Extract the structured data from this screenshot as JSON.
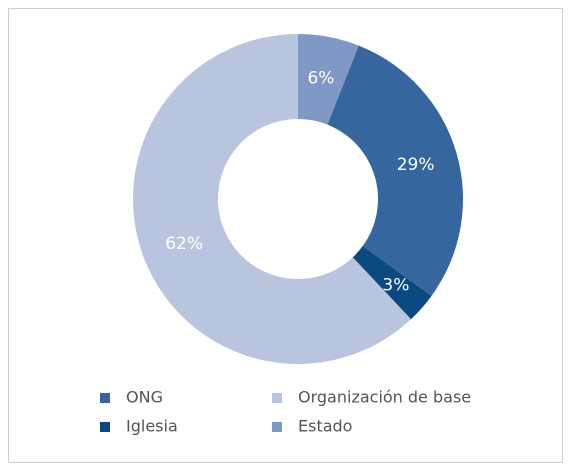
{
  "chart_data": {
    "type": "pie",
    "categories": [
      "Estado",
      "ONG",
      "Iglesia",
      "Organización de base"
    ],
    "values": [
      6,
      29,
      3,
      62
    ],
    "value_labels": [
      "6%",
      "29%",
      "3%",
      "62%"
    ],
    "colors": [
      "#7f98c4",
      "#35679e",
      "#0b4a80",
      "#b9c5de"
    ],
    "donut": true
  }
}
